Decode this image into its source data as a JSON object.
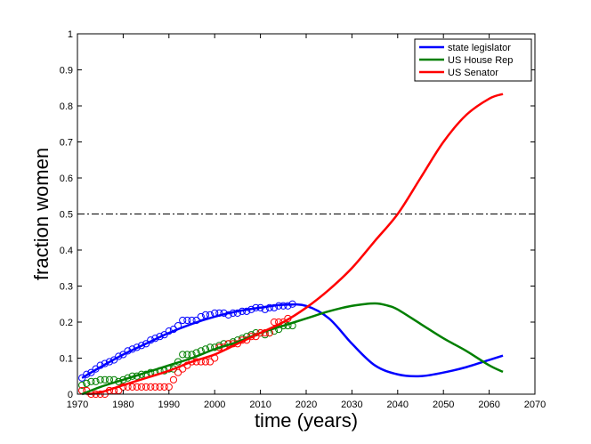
{
  "chart_data": {
    "type": "line",
    "title": "",
    "xlabel": "time (years)",
    "ylabel": "fraction women",
    "xlim": [
      1970,
      2070
    ],
    "ylim": [
      0,
      1
    ],
    "xticks": [
      1970,
      1980,
      1990,
      2000,
      2010,
      2020,
      2030,
      2040,
      2050,
      2060,
      2070
    ],
    "yticks": [
      0,
      0.1,
      0.2,
      0.3,
      0.4,
      0.5,
      0.6,
      0.7,
      0.8,
      0.9,
      1
    ],
    "ytick_labels": [
      "0",
      "0.1",
      "0.2",
      "0.3",
      "0.4",
      "0.5",
      "0.6",
      "0.7",
      "0.8",
      "0.9",
      "1"
    ],
    "grid": false,
    "legend_position": "top-right",
    "reference_line": {
      "y": 0.5,
      "style": "dash-dot",
      "color": "#000000"
    },
    "series": [
      {
        "name": "state legislator",
        "color": "#0000ff",
        "fit": {
          "x": [
            1971,
            1975,
            1980,
            1985,
            1990,
            1995,
            2000,
            2005,
            2010,
            2015,
            2020,
            2025,
            2030,
            2035,
            2040,
            2045,
            2050,
            2055,
            2060,
            2063
          ],
          "y": [
            0.045,
            0.075,
            0.11,
            0.14,
            0.17,
            0.195,
            0.215,
            0.23,
            0.24,
            0.248,
            0.245,
            0.21,
            0.14,
            0.08,
            0.055,
            0.05,
            0.06,
            0.075,
            0.095,
            0.107
          ]
        },
        "observed": {
          "x": [
            1971,
            1972,
            1973,
            1974,
            1975,
            1976,
            1977,
            1978,
            1979,
            1980,
            1981,
            1982,
            1983,
            1984,
            1985,
            1986,
            1987,
            1988,
            1989,
            1990,
            1991,
            1992,
            1993,
            1994,
            1995,
            1996,
            1997,
            1998,
            1999,
            2000,
            2001,
            2002,
            2003,
            2004,
            2005,
            2006,
            2007,
            2008,
            2009,
            2010,
            2011,
            2012,
            2013,
            2014,
            2015,
            2016,
            2017
          ],
          "y": [
            0.045,
            0.055,
            0.06,
            0.07,
            0.08,
            0.085,
            0.09,
            0.095,
            0.105,
            0.11,
            0.12,
            0.125,
            0.13,
            0.135,
            0.14,
            0.15,
            0.155,
            0.16,
            0.165,
            0.175,
            0.18,
            0.19,
            0.205,
            0.205,
            0.205,
            0.205,
            0.215,
            0.22,
            0.22,
            0.225,
            0.225,
            0.225,
            0.22,
            0.225,
            0.225,
            0.23,
            0.23,
            0.235,
            0.24,
            0.24,
            0.235,
            0.24,
            0.24,
            0.245,
            0.245,
            0.245,
            0.25
          ]
        }
      },
      {
        "name": "US House Rep",
        "color": "#007f00",
        "fit": {
          "x": [
            1971,
            1975,
            1980,
            1985,
            1990,
            1995,
            2000,
            2005,
            2010,
            2015,
            2020,
            2025,
            2030,
            2035,
            2038,
            2040,
            2045,
            2050,
            2055,
            2060,
            2063
          ],
          "y": [
            0.0,
            0.02,
            0.04,
            0.06,
            0.08,
            0.1,
            0.125,
            0.145,
            0.17,
            0.19,
            0.21,
            0.23,
            0.245,
            0.252,
            0.245,
            0.235,
            0.195,
            0.155,
            0.12,
            0.08,
            0.062
          ]
        },
        "observed": {
          "x": [
            1971,
            1972,
            1973,
            1974,
            1975,
            1976,
            1977,
            1978,
            1979,
            1980,
            1981,
            1982,
            1983,
            1984,
            1985,
            1986,
            1987,
            1988,
            1989,
            1990,
            1991,
            1992,
            1993,
            1994,
            1995,
            1996,
            1997,
            1998,
            1999,
            2000,
            2001,
            2002,
            2003,
            2004,
            2005,
            2006,
            2007,
            2008,
            2009,
            2010,
            2011,
            2012,
            2013,
            2014,
            2015,
            2016,
            2017
          ],
          "y": [
            0.025,
            0.03,
            0.035,
            0.035,
            0.04,
            0.04,
            0.04,
            0.04,
            0.035,
            0.04,
            0.045,
            0.05,
            0.05,
            0.055,
            0.055,
            0.06,
            0.06,
            0.065,
            0.065,
            0.07,
            0.07,
            0.09,
            0.11,
            0.11,
            0.11,
            0.115,
            0.12,
            0.125,
            0.13,
            0.13,
            0.135,
            0.14,
            0.14,
            0.145,
            0.15,
            0.155,
            0.16,
            0.165,
            0.17,
            0.17,
            0.165,
            0.17,
            0.175,
            0.18,
            0.19,
            0.19,
            0.19
          ]
        }
      },
      {
        "name": "US Senator",
        "color": "#ff0000",
        "fit": {
          "x": [
            1972,
            1975,
            1980,
            1985,
            1990,
            1995,
            2000,
            2005,
            2010,
            2015,
            2020,
            2025,
            2030,
            2035,
            2040,
            2045,
            2050,
            2055,
            2060,
            2063
          ],
          "y": [
            0.0,
            0.005,
            0.025,
            0.045,
            0.065,
            0.09,
            0.11,
            0.14,
            0.17,
            0.2,
            0.24,
            0.29,
            0.35,
            0.425,
            0.5,
            0.6,
            0.7,
            0.775,
            0.82,
            0.833
          ]
        },
        "observed": {
          "x": [
            1971,
            1972,
            1973,
            1974,
            1975,
            1976,
            1977,
            1978,
            1979,
            1980,
            1981,
            1982,
            1983,
            1984,
            1985,
            1986,
            1987,
            1988,
            1989,
            1990,
            1991,
            1992,
            1993,
            1994,
            1995,
            1996,
            1997,
            1998,
            1999,
            2000,
            2001,
            2002,
            2003,
            2004,
            2005,
            2006,
            2007,
            2008,
            2009,
            2010,
            2011,
            2012,
            2013,
            2014,
            2015,
            2016
          ],
          "y": [
            0.01,
            0.01,
            0.0,
            0.0,
            0.0,
            0.0,
            0.01,
            0.01,
            0.01,
            0.02,
            0.02,
            0.02,
            0.02,
            0.02,
            0.02,
            0.02,
            0.02,
            0.02,
            0.02,
            0.02,
            0.04,
            0.06,
            0.07,
            0.08,
            0.09,
            0.09,
            0.09,
            0.09,
            0.09,
            0.1,
            0.13,
            0.13,
            0.14,
            0.14,
            0.14,
            0.15,
            0.15,
            0.16,
            0.16,
            0.17,
            0.17,
            0.17,
            0.2,
            0.2,
            0.2,
            0.21
          ]
        }
      }
    ]
  }
}
